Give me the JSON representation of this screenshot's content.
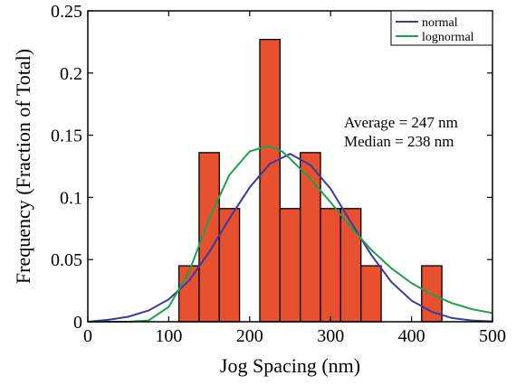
{
  "chart_data": {
    "type": "bar",
    "xlabel": "Jog Spacing (nm)",
    "ylabel": "Frequency (Fraction of Total)",
    "xlim": [
      0,
      500
    ],
    "ylim": [
      0,
      0.25
    ],
    "x_ticks": [
      0,
      100,
      200,
      300,
      400,
      500
    ],
    "x_tick_labels": [
      "0",
      "100",
      "200",
      "300",
      "400",
      "500"
    ],
    "y_ticks": [
      0,
      0.05,
      0.1,
      0.15,
      0.2,
      0.25
    ],
    "y_tick_labels": [
      "0",
      "0.05",
      "0.1",
      "0.15",
      "0.2",
      "0.25"
    ],
    "grid": false,
    "bar_color": "#e8512f",
    "histogram": {
      "bin_width": 25,
      "bins": [
        {
          "start": 112.5,
          "value": 0.045
        },
        {
          "start": 137.5,
          "value": 0.136
        },
        {
          "start": 162.5,
          "value": 0.091
        },
        {
          "start": 212.5,
          "value": 0.227
        },
        {
          "start": 237.5,
          "value": 0.091
        },
        {
          "start": 262.5,
          "value": 0.136
        },
        {
          "start": 287.5,
          "value": 0.091
        },
        {
          "start": 312.5,
          "value": 0.091
        },
        {
          "start": 337.5,
          "value": 0.045
        },
        {
          "start": 412.5,
          "value": 0.045
        }
      ]
    },
    "series": [
      {
        "name": "normal",
        "color": "#3b3b9e",
        "x": [
          0,
          25,
          50,
          75,
          100,
          125,
          150,
          175,
          200,
          225,
          250,
          275,
          300,
          325,
          350,
          375,
          400,
          425,
          450,
          475,
          500
        ],
        "y": [
          0.0,
          0.0015,
          0.004,
          0.009,
          0.018,
          0.033,
          0.056,
          0.083,
          0.108,
          0.127,
          0.135,
          0.126,
          0.107,
          0.08,
          0.054,
          0.032,
          0.017,
          0.008,
          0.003,
          0.001,
          0.0003
        ]
      },
      {
        "name": "lognormal",
        "color": "#1fa04f",
        "x": [
          0,
          50,
          75,
          100,
          125,
          150,
          175,
          200,
          215,
          225,
          240,
          250,
          275,
          300,
          325,
          350,
          375,
          400,
          425,
          450,
          475,
          500
        ],
        "y": [
          0.0,
          0.0,
          0.001,
          0.012,
          0.04,
          0.083,
          0.118,
          0.137,
          0.14,
          0.141,
          0.137,
          0.131,
          0.115,
          0.096,
          0.076,
          0.058,
          0.043,
          0.031,
          0.022,
          0.015,
          0.01,
          0.007
        ]
      }
    ],
    "legend": {
      "placement": "top-right",
      "entries": [
        "normal",
        "lognormal"
      ]
    },
    "annotations": [
      "Average = 247 nm",
      "Median = 238 nm"
    ]
  }
}
